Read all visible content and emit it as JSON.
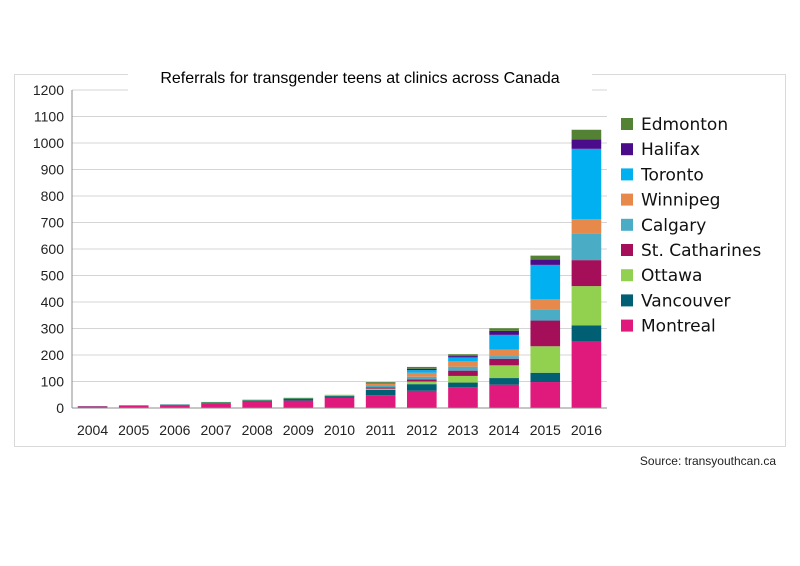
{
  "chart_data": {
    "type": "bar",
    "stacked": true,
    "title": "Referrals for transgender teens at clinics across Canada",
    "source": "Source: transyouthcan.ca",
    "xlabel": "",
    "ylabel": "",
    "ylim": [
      0,
      1200
    ],
    "yticks": [
      0,
      100,
      200,
      300,
      400,
      500,
      600,
      700,
      800,
      900,
      1000,
      1100,
      1200
    ],
    "grid": true,
    "legend_position": "right",
    "categories": [
      "2004",
      "2005",
      "2006",
      "2007",
      "2008",
      "2009",
      "2010",
      "2011",
      "2012",
      "2013",
      "2014",
      "2015",
      "2016"
    ],
    "series": [
      {
        "name": "Montreal",
        "color": "#e0197d",
        "values": [
          6,
          8,
          11,
          18,
          24,
          28,
          38,
          48,
          65,
          78,
          88,
          98,
          250
        ]
      },
      {
        "name": "Vancouver",
        "color": "#005f73",
        "values": [
          1,
          2,
          2,
          3,
          5,
          8,
          7,
          20,
          25,
          18,
          25,
          35,
          62
        ]
      },
      {
        "name": "Ottawa",
        "color": "#92d050",
        "values": [
          0,
          0,
          0,
          2,
          3,
          3,
          5,
          5,
          10,
          25,
          48,
          100,
          148
        ]
      },
      {
        "name": "St. Catharines",
        "color": "#a50f5a",
        "values": [
          0,
          0,
          0,
          0,
          0,
          0,
          0,
          5,
          8,
          20,
          25,
          97,
          98
        ]
      },
      {
        "name": "Calgary",
        "color": "#4bacc6",
        "values": [
          0,
          0,
          0,
          0,
          0,
          0,
          0,
          5,
          10,
          15,
          10,
          40,
          100
        ]
      },
      {
        "name": "Winnipeg",
        "color": "#e8894c",
        "values": [
          0,
          0,
          0,
          0,
          0,
          0,
          0,
          10,
          15,
          20,
          25,
          40,
          55
        ]
      },
      {
        "name": "Toronto",
        "color": "#00b0f0",
        "values": [
          0,
          0,
          0,
          0,
          0,
          0,
          0,
          0,
          10,
          15,
          55,
          130,
          265
        ]
      },
      {
        "name": "Halifax",
        "color": "#4b0c8c",
        "values": [
          0,
          0,
          0,
          0,
          0,
          0,
          0,
          2,
          5,
          5,
          15,
          20,
          35
        ]
      },
      {
        "name": "Edmonton",
        "color": "#548235",
        "values": [
          0,
          0,
          0,
          0,
          0,
          0,
          0,
          3,
          7,
          7,
          10,
          15,
          37
        ]
      }
    ]
  }
}
